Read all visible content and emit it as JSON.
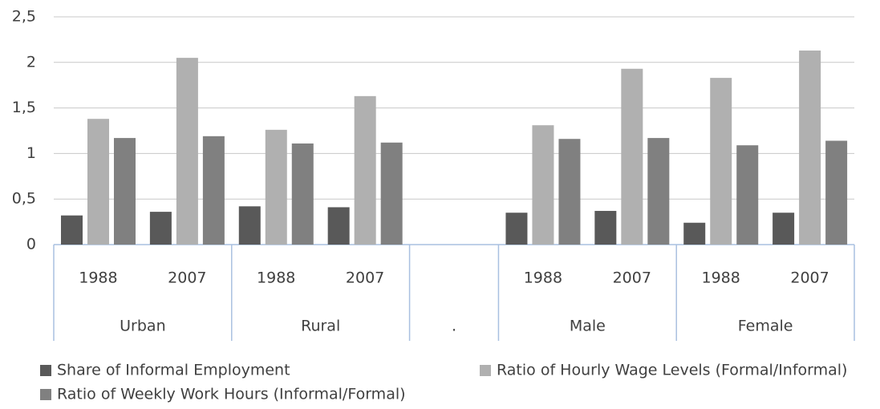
{
  "chart_data": {
    "type": "bar",
    "categories": [
      "1988",
      "2007",
      "1988",
      "2007",
      null,
      "1988",
      "2007",
      "1988",
      "2007"
    ],
    "groups": [
      {
        "label": "Urban",
        "span": 2
      },
      {
        "label": "Rural",
        "span": 2
      },
      {
        "label": ".",
        "span": 1
      },
      {
        "label": "Male",
        "span": 2
      },
      {
        "label": "Female",
        "span": 2
      }
    ],
    "series": [
      {
        "name": "Share of Informal Employment",
        "color": "#595959",
        "values": [
          0.32,
          0.36,
          0.42,
          0.41,
          null,
          0.35,
          0.37,
          0.24,
          0.35
        ]
      },
      {
        "name": "Ratio of Hourly Wage Levels (Formal/Informal)",
        "color": "#b0b0b0",
        "values": [
          1.38,
          2.05,
          1.26,
          1.63,
          null,
          1.31,
          1.93,
          1.83,
          2.13
        ]
      },
      {
        "name": "Ratio of Weekly Work Hours (Informal/Formal)",
        "color": "#808080",
        "values": [
          1.17,
          1.19,
          1.11,
          1.12,
          null,
          1.16,
          1.17,
          1.09,
          1.14
        ]
      }
    ],
    "ylim": [
      0,
      2.5
    ],
    "yticks": [
      0,
      {
        "value": 0.5,
        "label": "0,5"
      },
      1,
      {
        "value": 1.5,
        "label": "1,5"
      },
      2,
      {
        "value": 2.5,
        "label": "2,5"
      }
    ],
    "grid": true
  }
}
